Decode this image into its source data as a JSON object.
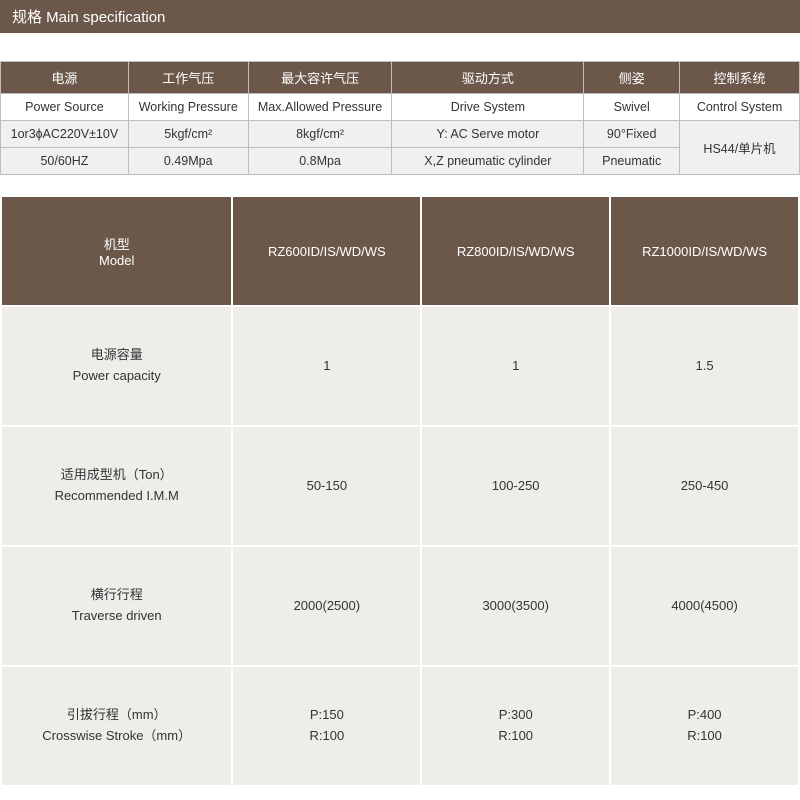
{
  "title": "规格 Main specification",
  "table1": {
    "head_cn": [
      "电源",
      "工作气压",
      "最大容许气压",
      "驱动方式",
      "侧姿",
      "控制系统"
    ],
    "head_en": [
      "Power Source",
      "Working Pressure",
      "Max.Allowed Pressure",
      "Drive System",
      "Swivel",
      "Control System"
    ],
    "row1": [
      "1or3ɸAC220V±10V",
      "5kgf/cm²",
      "8kgf/cm²",
      "Y: AC Serve motor",
      "90°Fixed",
      "HS44/单片机"
    ],
    "row2": [
      "50/60HZ",
      "0.49Mpa",
      "0.8Mpa",
      "X,Z pneumatic cylinder",
      "Pneumatic",
      ""
    ]
  },
  "table2": {
    "cols_header_cn": "机型",
    "cols_header_en": "Model",
    "cols": [
      "RZ600ID/IS/WD/WS",
      "RZ800ID/IS/WD/WS",
      "RZ1000ID/IS/WD/WS"
    ],
    "rows": [
      {
        "label_cn": "电源容量",
        "label_en": "Power capacity",
        "vals": [
          "1",
          "1",
          "1.5"
        ]
      },
      {
        "label_cn": "适用成型机（Ton）",
        "label_en": "Recommended I.M.M",
        "vals": [
          "50-150",
          "100-250",
          "250-450"
        ]
      },
      {
        "label_cn": "横行行程",
        "label_en": "Traverse driven",
        "vals": [
          "2000(2500)",
          "3000(3500)",
          "4000(4500)"
        ]
      },
      {
        "label_cn": "引拔行程（mm）",
        "label_en": "Crosswise Stroke（mm）",
        "vals": [
          "P:150\nR:100",
          "P:300\nR:100",
          "P:400\nR:100"
        ]
      }
    ]
  },
  "colors": {
    "header_bg": "#6b584a",
    "header_fg": "#ffffff",
    "cell_bg_1": "#f2f0ee",
    "cell_bg_2": "#efedea",
    "border_1": "#bdbdbd",
    "page_bg": "#ffffff"
  },
  "col_widths_t1_pct": [
    16,
    15,
    18,
    24,
    12,
    15
  ]
}
